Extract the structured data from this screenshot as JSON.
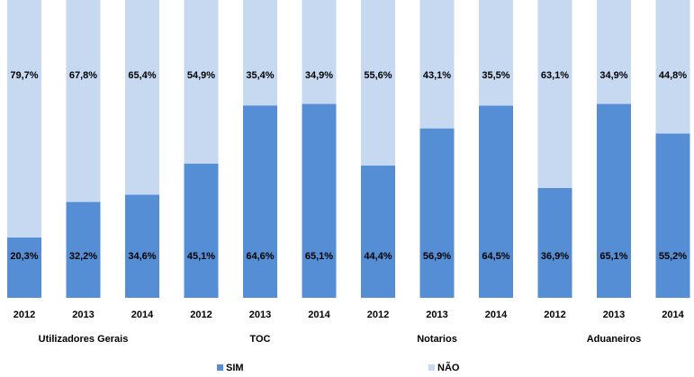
{
  "chart_data": {
    "type": "stacked_bar",
    "categories": [
      "2012",
      "2013",
      "2014",
      "2012",
      "2013",
      "2014",
      "2012",
      "2013",
      "2014",
      "2012",
      "2013",
      "2014"
    ],
    "groups": [
      "Utilizadores Gerais",
      "TOC",
      "Notarios",
      "Aduaneiros"
    ],
    "ylim": [
      0,
      100
    ],
    "series": [
      {
        "name": "SIM",
        "color": "#558ed5",
        "values": [
          20.3,
          32.2,
          34.6,
          45.1,
          64.6,
          65.1,
          44.4,
          56.9,
          64.5,
          36.9,
          65.1,
          55.2
        ],
        "value_labels": [
          "20,3%",
          "32,2%",
          "34,6%",
          "45,1%",
          "64,6%",
          "65,1%",
          "44,4%",
          "56,9%",
          "64,5%",
          "36,9%",
          "65,1%",
          "55,2%"
        ]
      },
      {
        "name": "NÃO",
        "color": "#c6d9f1",
        "values": [
          79.7,
          67.8,
          65.4,
          54.9,
          35.4,
          34.9,
          55.6,
          43.1,
          35.5,
          63.1,
          34.9,
          44.8
        ],
        "value_labels": [
          "79,7%",
          "67,8%",
          "65,4%",
          "54,9%",
          "35,4%",
          "34,9%",
          "55,6%",
          "43,1%",
          "35,5%",
          "63,1%",
          "34,9%",
          "44,8%"
        ]
      }
    ],
    "legend": "bottom"
  }
}
